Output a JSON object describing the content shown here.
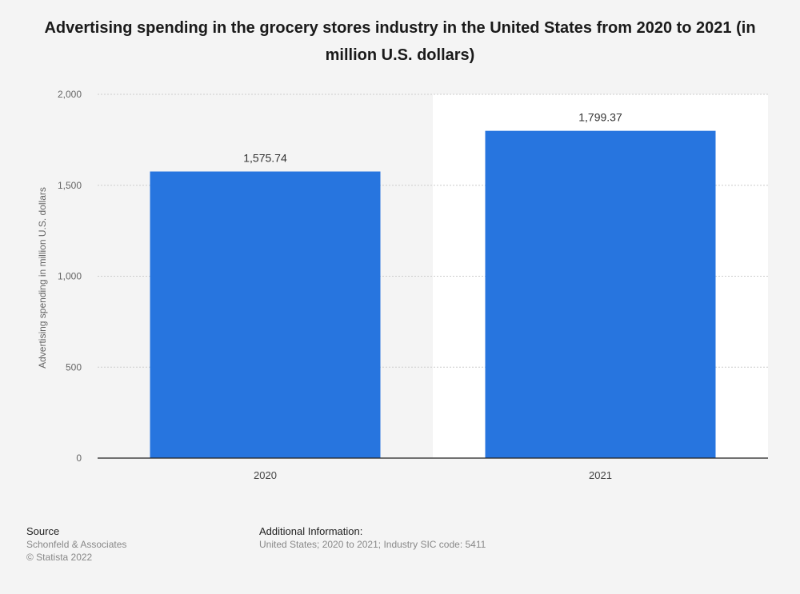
{
  "chart_data": {
    "type": "bar",
    "title": "Advertising spending in the grocery stores industry in the United States from 2020 to 2021 (in million U.S. dollars)",
    "xlabel": "",
    "ylabel": "Advertising spending in million U.S. dollars",
    "categories": [
      "2020",
      "2021"
    ],
    "values": [
      1575.74,
      1799.37
    ],
    "value_labels": [
      "1,575.74",
      "1,799.37"
    ],
    "ylim": [
      0,
      2000
    ],
    "yticks": [
      0,
      500,
      1000,
      1500,
      2000
    ],
    "ytick_labels": [
      "0",
      "500",
      "1,000",
      "1,500",
      "2,000"
    ],
    "grid": true,
    "colors": {
      "bar": "#2775df",
      "highlight_band": "#ffffff",
      "axis": "#222222",
      "grid": "#cccccc"
    }
  },
  "footer": {
    "source_heading": "Source",
    "source_name": "Schonfeld & Associates",
    "copyright": "© Statista 2022",
    "info_heading": "Additional Information:",
    "info_text": "United States; 2020 to 2021; Industry SIC code: 5411"
  }
}
